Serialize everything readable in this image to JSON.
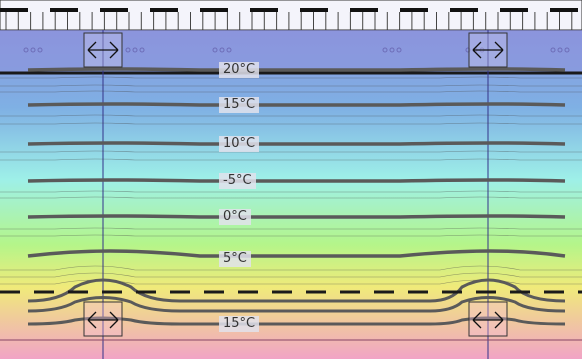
{
  "isotherm_labels": [
    {
      "text": "20°C"
    },
    {
      "text": "15°C"
    },
    {
      "text": "10°C"
    },
    {
      "text": "-5°C"
    },
    {
      "text": "0°C"
    },
    {
      "text": "5°C"
    },
    {
      "text": "15°C"
    }
  ],
  "colors": {
    "cold": "#8e8fdc",
    "cool": "#7fb0e4",
    "mild": "#9ef0e8",
    "neutral": "#b4f58a",
    "warm": "#f0ea7a",
    "hot": "#f1a4c6",
    "isotherm": "#555555",
    "fine_line": "#444444",
    "boundary": "#1a1a1a",
    "fastener_line": "#33338a"
  },
  "icons": {
    "fastener": "double-arrow-icon",
    "cladding": "cladding-grid-icon"
  }
}
